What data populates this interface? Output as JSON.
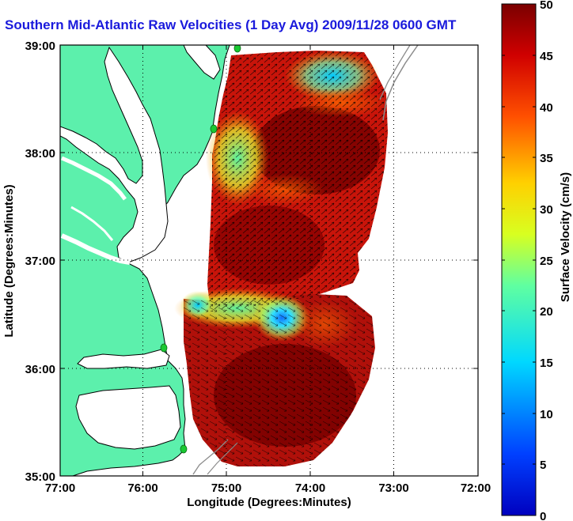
{
  "title": "Southern Mid-Atlantic Raw Velocities (1 Day Avg) 2009/11/28 0600 GMT",
  "axes": {
    "xlabel": "Longitude (Degrees:Minutes)",
    "ylabel": "Latitude (Degrees:Minutes)",
    "x_ticks": [
      "77:00",
      "76:00",
      "75:00",
      "74:00",
      "73:00",
      "72:00"
    ],
    "y_ticks": [
      "39:00",
      "38:00",
      "37:00",
      "36:00",
      "35:00"
    ],
    "x_range": [
      -77,
      -72
    ],
    "y_range": [
      35,
      39
    ],
    "grid": "dotted"
  },
  "colorbar": {
    "label": "Surface Velocity (cm/s)",
    "ticks": [
      "50",
      "45",
      "40",
      "35",
      "30",
      "25",
      "20",
      "15",
      "10",
      "5",
      "0"
    ],
    "range": [
      0,
      50
    ],
    "colormap": "jet",
    "position": "right"
  },
  "colors": {
    "land": "#5cf0ac",
    "coast": "#000000",
    "shelf_contour": "#8c8c8c",
    "station": "#19c832",
    "title": "#1a1adc"
  },
  "map_features": {
    "land": "Delmarva Peninsula, Virginia and North Carolina coast",
    "field": "HF radar surface current speed with velocity arrows"
  }
}
